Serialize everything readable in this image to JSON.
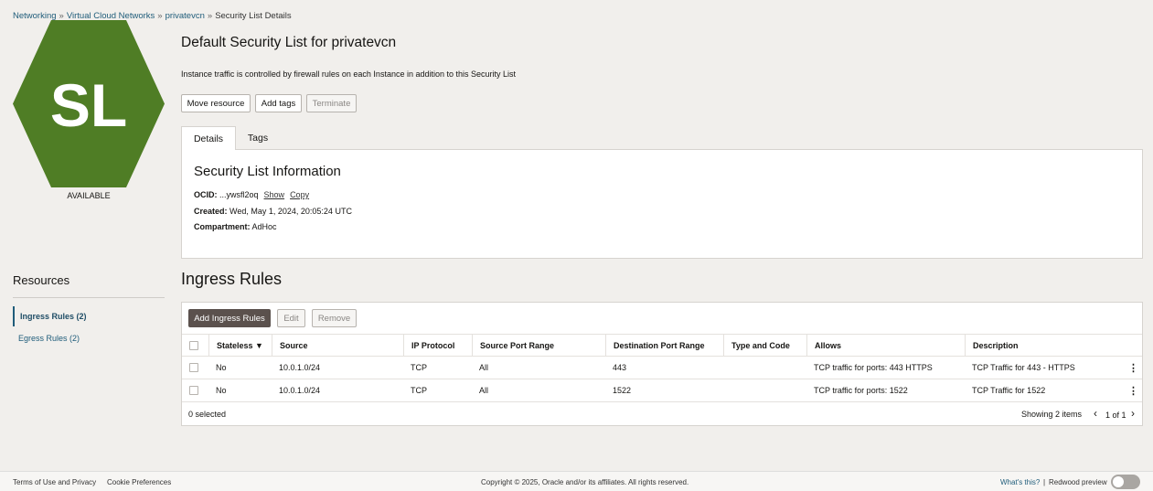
{
  "breadcrumb": [
    {
      "label": "Networking"
    },
    {
      "label": "Virtual Cloud Networks"
    },
    {
      "label": "privatevcn"
    },
    {
      "label": "Security List Details"
    }
  ],
  "breadcrumb_sep": "»",
  "icon": {
    "initials": "SL",
    "color": "#4f7d25",
    "status": "AVAILABLE"
  },
  "header": {
    "title": "Default Security List for privatevcn",
    "description": "Instance traffic is controlled by firewall rules on each Instance in addition to this Security List"
  },
  "actions": {
    "move": "Move resource",
    "tags": "Add tags",
    "terminate": "Terminate"
  },
  "tabs": [
    {
      "label": "Details"
    },
    {
      "label": "Tags"
    }
  ],
  "info": {
    "heading": "Security List Information",
    "ocid_label": "OCID:",
    "ocid": "...ywsfl2oq",
    "show": "Show",
    "copy": "Copy",
    "created_label": "Created:",
    "created": "Wed, May 1, 2024, 20:05:24 UTC",
    "compartment_label": "Compartment:",
    "compartment": "AdHoc"
  },
  "resources": {
    "title": "Resources",
    "items": [
      {
        "label": "Ingress Rules (2)"
      },
      {
        "label": "Egress Rules (2)"
      }
    ]
  },
  "ingress": {
    "title": "Ingress Rules",
    "add": "Add Ingress Rules",
    "edit": "Edit",
    "remove": "Remove",
    "columns": [
      "Stateless ▼",
      "Source",
      "IP Protocol",
      "Source Port Range",
      "Destination Port Range",
      "Type and Code",
      "Allows",
      "Description"
    ],
    "rows": [
      [
        "No",
        "10.0.1.0/24",
        "TCP",
        "All",
        "443",
        "",
        "TCP traffic for ports: 443 HTTPS",
        "TCP Traffic for 443 - HTTPS"
      ],
      [
        "No",
        "10.0.1.0/24",
        "TCP",
        "All",
        "1522",
        "",
        "TCP traffic for ports: 1522",
        "TCP Traffic for 1522"
      ]
    ],
    "selected": "0 selected",
    "showing": "Showing 2 items",
    "page": "1 of 1"
  },
  "footer": {
    "terms": "Terms of Use and Privacy",
    "cookie": "Cookie Preferences",
    "copyright": "Copyright © 2025, Oracle and/or its affiliates. All rights reserved.",
    "whats": "What's this?",
    "sep": "|",
    "redwood": "Redwood preview"
  }
}
